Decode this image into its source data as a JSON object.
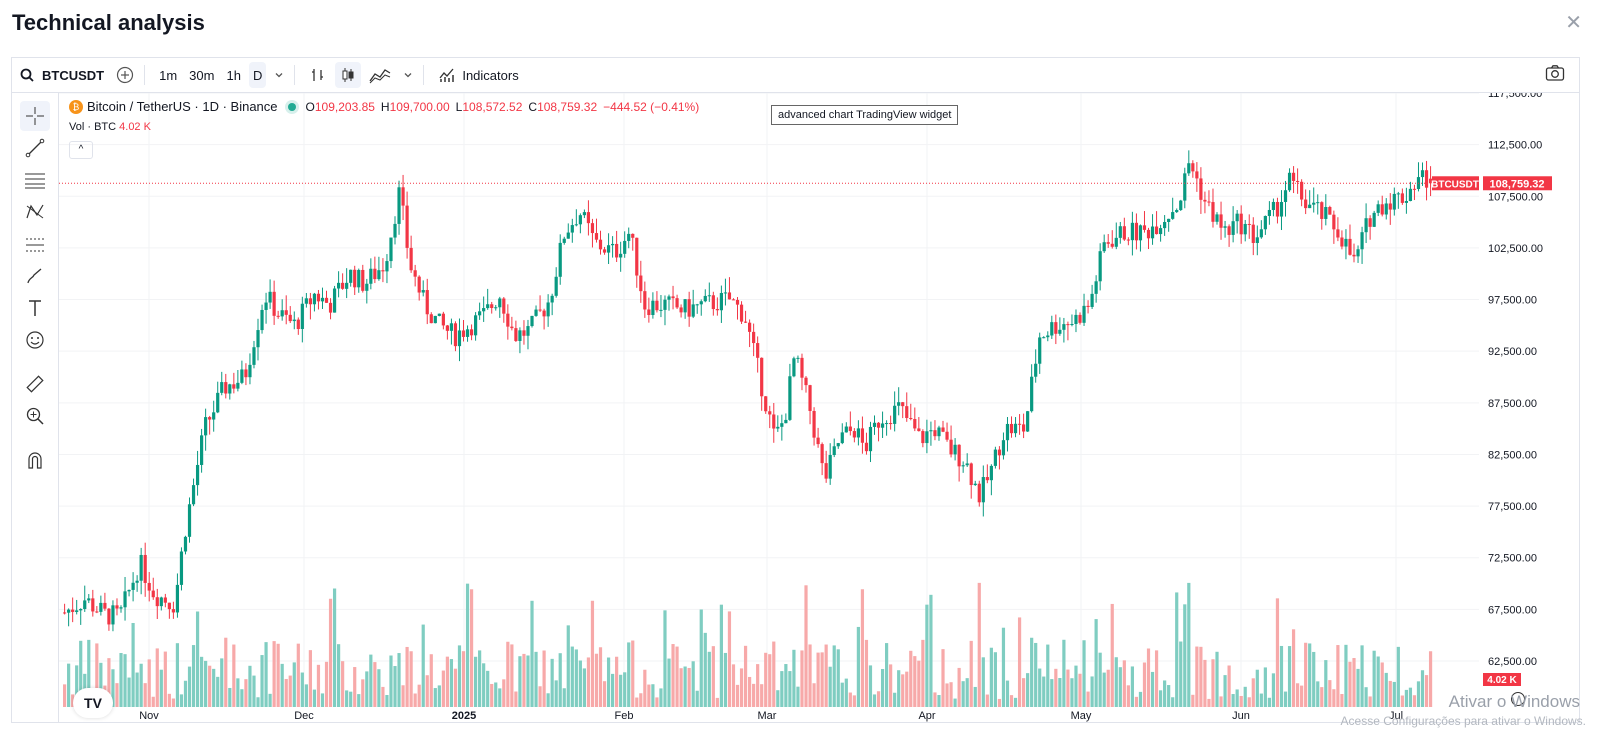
{
  "window": {
    "title": "Technical analysis"
  },
  "toolbar": {
    "symbol": "BTCUSDT",
    "intervals": [
      "1m",
      "30m",
      "1h",
      "D"
    ],
    "active_interval": "D",
    "indicators_label": "Indicators"
  },
  "legend": {
    "name": "Bitcoin / TetherUS · 1D · Binance",
    "o_label": "O",
    "o": "109,203.85",
    "h_label": "H",
    "h": "109,700.00",
    "l_label": "L",
    "l": "108,572.52",
    "c_label": "C",
    "c": "108,759.32",
    "change": "−444.52 (−0.41%)"
  },
  "volume": {
    "label": "Vol · BTC",
    "value": "4.02 K",
    "badge": "4.02 K"
  },
  "tooltip": "advanced chart TradingView widget",
  "price_badge": {
    "symbol": "BTCUSDT",
    "price": "108,759.32"
  },
  "colors": {
    "up": "#089981",
    "down": "#f23645",
    "vol_up": "#7fcdc1",
    "vol_down": "#f7a9a9"
  },
  "watermark": {
    "line1": "Ativar o Windows",
    "line2": "Acesse Configurações para ativar o Windows."
  },
  "chart_data": {
    "type": "candlestick",
    "symbol": "BTCUSDT",
    "price_axis": [
      "117,500.00",
      "112,500.00",
      "107,500.00",
      "102,500.00",
      "97,500.00",
      "92,500.00",
      "87,500.00",
      "82,500.00",
      "77,500.00",
      "72,500.00",
      "67,500.00",
      "62,500.00"
    ],
    "price_values": [
      117500,
      112500,
      107500,
      102500,
      97500,
      92500,
      87500,
      82500,
      77500,
      72500,
      67500,
      62500
    ],
    "time_axis": [
      "Nov",
      "Dec",
      "2025",
      "Feb",
      "Mar",
      "Apr",
      "May",
      "Jun",
      "Jul"
    ],
    "grid": true,
    "close_path": [
      [
        0,
        67200
      ],
      [
        20,
        68500
      ],
      [
        40,
        67000
      ],
      [
        55,
        66800
      ],
      [
        75,
        72000
      ],
      [
        90,
        69000
      ],
      [
        110,
        68000
      ],
      [
        120,
        75000
      ],
      [
        140,
        85000
      ],
      [
        160,
        89000
      ],
      [
        180,
        90000
      ],
      [
        200,
        98000
      ],
      [
        215,
        96000
      ],
      [
        230,
        95000
      ],
      [
        250,
        98000
      ],
      [
        265,
        97000
      ],
      [
        285,
        100000
      ],
      [
        300,
        99000
      ],
      [
        320,
        101000
      ],
      [
        335,
        108000
      ],
      [
        345,
        101000
      ],
      [
        360,
        97000
      ],
      [
        375,
        95000
      ],
      [
        390,
        94000
      ],
      [
        405,
        95000
      ],
      [
        420,
        96000
      ],
      [
        435,
        98000
      ],
      [
        450,
        94000
      ],
      [
        465,
        94500
      ],
      [
        485,
        97500
      ],
      [
        500,
        104000
      ],
      [
        515,
        106000
      ],
      [
        530,
        103000
      ],
      [
        550,
        102000
      ],
      [
        565,
        104000
      ],
      [
        580,
        97000
      ],
      [
        600,
        97000
      ],
      [
        620,
        96500
      ],
      [
        640,
        97000
      ],
      [
        665,
        97500
      ],
      [
        680,
        96000
      ],
      [
        695,
        90000
      ],
      [
        710,
        84000
      ],
      [
        720,
        86000
      ],
      [
        730,
        92000
      ],
      [
        745,
        87000
      ],
      [
        760,
        80000
      ],
      [
        775,
        84000
      ],
      [
        790,
        85000
      ],
      [
        800,
        83000
      ],
      [
        815,
        86000
      ],
      [
        835,
        87000
      ],
      [
        855,
        84000
      ],
      [
        870,
        85000
      ],
      [
        885,
        83000
      ],
      [
        900,
        82000
      ],
      [
        915,
        78500
      ],
      [
        925,
        80500
      ],
      [
        940,
        85000
      ],
      [
        960,
        85000
      ],
      [
        975,
        94000
      ],
      [
        990,
        95000
      ],
      [
        1010,
        95500
      ],
      [
        1025,
        97000
      ],
      [
        1040,
        103000
      ],
      [
        1060,
        104000
      ],
      [
        1080,
        104000
      ],
      [
        1100,
        105500
      ],
      [
        1115,
        107000
      ],
      [
        1125,
        111000
      ],
      [
        1140,
        107000
      ],
      [
        1160,
        104000
      ],
      [
        1175,
        105000
      ],
      [
        1190,
        103500
      ],
      [
        1210,
        106000
      ],
      [
        1225,
        109000
      ],
      [
        1240,
        107000
      ],
      [
        1260,
        105500
      ],
      [
        1275,
        104000
      ],
      [
        1290,
        101000
      ],
      [
        1305,
        105500
      ],
      [
        1320,
        107000
      ],
      [
        1340,
        107500
      ],
      [
        1355,
        109500
      ],
      [
        1370,
        108759
      ]
    ],
    "last": {
      "open": 109203.85,
      "high": 109700.0,
      "low": 108572.52,
      "close": 108759.32,
      "change": -444.52,
      "change_pct": -0.41,
      "volume": "4.02 K"
    }
  }
}
